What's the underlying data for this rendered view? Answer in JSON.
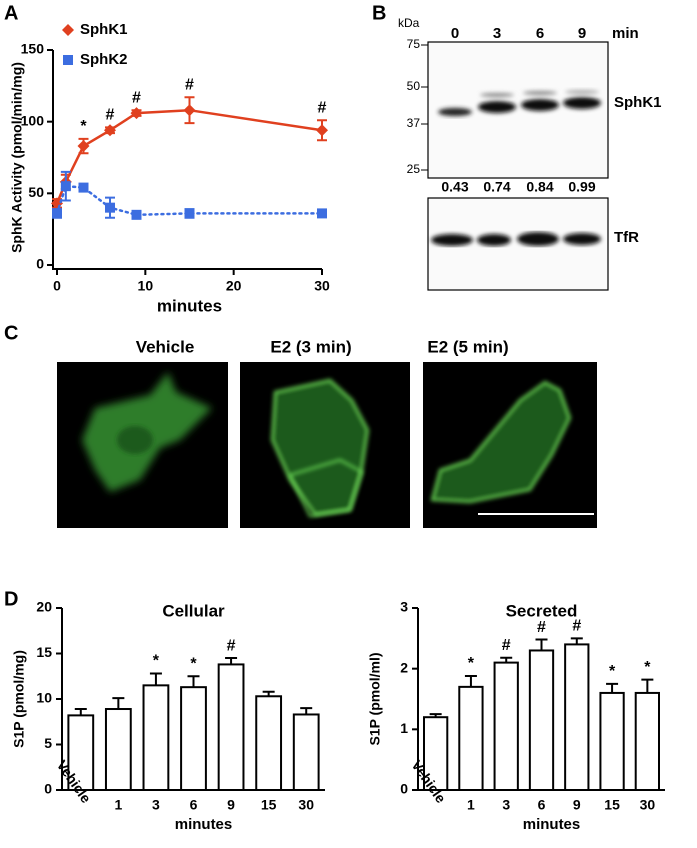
{
  "panel_labels": [
    "A",
    "B",
    "C",
    "D"
  ],
  "chart_data": [
    {
      "type": "line",
      "ylabel": "SphK Activity (pmol/min/mg)",
      "xlabel": "minutes",
      "x": [
        0,
        1,
        3,
        6,
        9,
        15,
        30
      ],
      "series": [
        {
          "name": "SphK1",
          "color": "#e0401f",
          "marker": "diamond",
          "dash": "solid",
          "values": [
            43,
            58,
            83,
            94,
            106,
            108,
            94
          ],
          "errors": [
            3,
            5,
            5,
            2,
            2,
            9,
            7
          ]
        },
        {
          "name": "SphK2",
          "color": "#3c6de0",
          "marker": "square",
          "dash": "dotted",
          "values": [
            36,
            55,
            54,
            40,
            35,
            36,
            36
          ],
          "errors": [
            3,
            10,
            2,
            7,
            2,
            3,
            2
          ]
        }
      ],
      "annotations": [
        null,
        null,
        "*",
        "#",
        "#",
        "#",
        "#"
      ],
      "xlim": [
        0,
        30
      ],
      "xticks": [
        0,
        10,
        20,
        30
      ],
      "ylim": [
        0,
        150
      ],
      "yticks": [
        0,
        50,
        100,
        150
      ]
    },
    {
      "type": "bar",
      "title": "Cellular",
      "ylabel": "S1P (pmol/mg)",
      "xlabel": "minutes",
      "categories": [
        "Vehicle",
        "1",
        "3",
        "6",
        "9",
        "15",
        "30"
      ],
      "values": [
        8.2,
        8.9,
        11.5,
        11.3,
        13.8,
        10.3,
        8.3
      ],
      "errors": [
        0.7,
        1.2,
        1.3,
        1.2,
        0.7,
        0.5,
        0.7
      ],
      "annotations": [
        null,
        null,
        "*",
        "*",
        "#",
        null,
        null
      ],
      "color": "#ffffff",
      "ylim": [
        0,
        20
      ],
      "yticks": [
        0,
        5,
        10,
        15,
        20
      ]
    },
    {
      "type": "bar",
      "title": "Secreted",
      "ylabel": "S1P (pmol/ml)",
      "xlabel": "minutes",
      "categories": [
        "Vehicle",
        "1",
        "3",
        "6",
        "9",
        "15",
        "30"
      ],
      "values": [
        1.2,
        1.7,
        2.1,
        2.3,
        2.4,
        1.6,
        1.6
      ],
      "errors": [
        0.05,
        0.18,
        0.08,
        0.18,
        0.1,
        0.15,
        0.22
      ],
      "annotations": [
        null,
        "*",
        "#",
        "#",
        "#",
        "*",
        "*"
      ],
      "color": "#ffffff",
      "ylim": [
        0,
        3
      ],
      "yticks": [
        0,
        1,
        2,
        3
      ]
    }
  ],
  "blot": {
    "unit": "kDa",
    "markers": [
      "75",
      "50",
      "37",
      "25"
    ],
    "lanes": [
      "0",
      "3",
      "6",
      "9"
    ],
    "lane_unit": "min",
    "bands": [
      "SphK1",
      "TfR"
    ],
    "ratios": [
      "0.43",
      "0.74",
      "0.84",
      "0.99"
    ]
  },
  "micrographs": {
    "titles": [
      "Vehicle",
      "E2 (3 min)",
      "E2 (5 min)"
    ]
  }
}
